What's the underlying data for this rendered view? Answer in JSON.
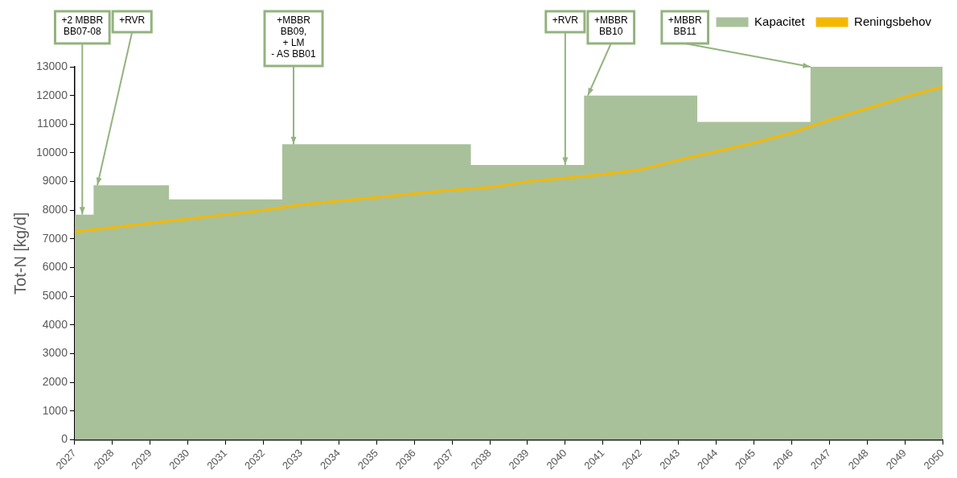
{
  "chart_data": {
    "type": "line",
    "ylabel": "Tot-N [kg/d]",
    "x": [
      2027,
      2028,
      2029,
      2030,
      2031,
      2032,
      2033,
      2034,
      2035,
      2036,
      2037,
      2038,
      2039,
      2040,
      2041,
      2042,
      2043,
      2044,
      2045,
      2046,
      2047,
      2048,
      2049,
      2050
    ],
    "xlim": [
      2027,
      2050
    ],
    "xticks": [
      2027,
      2028,
      2029,
      2030,
      2031,
      2032,
      2033,
      2034,
      2035,
      2036,
      2037,
      2038,
      2039,
      2040,
      2041,
      2042,
      2043,
      2044,
      2045,
      2046,
      2047,
      2048,
      2049,
      2050
    ],
    "ylim": [
      0,
      13000
    ],
    "yticks": [
      0,
      1000,
      2000,
      3000,
      4000,
      5000,
      6000,
      7000,
      8000,
      9000,
      10000,
      11000,
      12000,
      13000
    ],
    "series": [
      {
        "name": "Kapacitet",
        "type": "area",
        "color": "#a9c19a",
        "x": [
          2027,
          2027.5,
          2027.5,
          2029.5,
          2029.5,
          2032.5,
          2032.5,
          2037.5,
          2037.5,
          2040.5,
          2040.5,
          2043.5,
          2043.5,
          2046.5,
          2046.5,
          2050
        ],
        "values": [
          7850,
          7850,
          8870,
          8870,
          8380,
          8380,
          10300,
          10300,
          9580,
          9580,
          12000,
          12000,
          11080,
          11080,
          13000,
          13000
        ]
      },
      {
        "name": "Reningsbehov",
        "type": "line",
        "color": "#f5b800",
        "values": [
          7250,
          7400,
          7550,
          7700,
          7850,
          8000,
          8200,
          8320,
          8450,
          8580,
          8700,
          8800,
          9000,
          9120,
          9250,
          9420,
          9750,
          10050,
          10350,
          10700,
          11150,
          11550,
          11950,
          12300
        ]
      }
    ],
    "annotations": [
      {
        "text": "+2 MBBR\nBB07-08",
        "x": 2027.2,
        "y": 7850
      },
      {
        "text": "+RVR",
        "x": 2027.6,
        "y": 8870
      },
      {
        "text": "+MBBR\nBB09,\n+ LM\n- AS BB01",
        "x": 2032.8,
        "y": 10300
      },
      {
        "text": "+RVR",
        "x": 2040,
        "y": 9580
      },
      {
        "text": "+MBBR\nBB10",
        "x": 2040.6,
        "y": 12000
      },
      {
        "text": "+MBBR\nBB11",
        "x": 2046.5,
        "y": 13000
      }
    ],
    "grid": false,
    "legend": "top right",
    "marker": "none"
  }
}
